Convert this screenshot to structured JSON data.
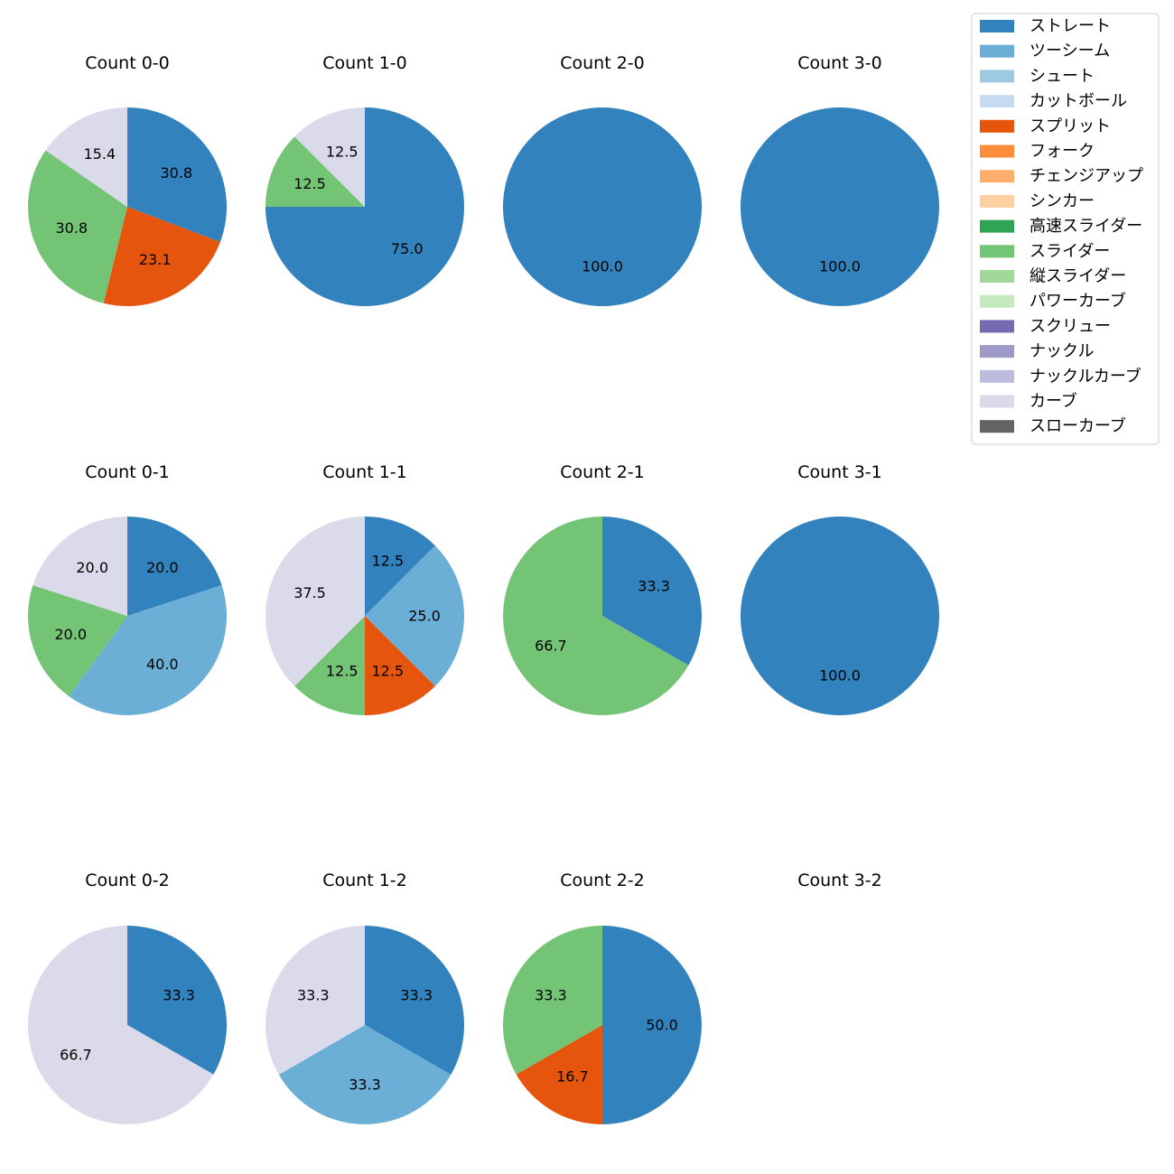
{
  "colors": {
    "ストレート": "#3182bd",
    "ツーシーム": "#6baed6",
    "シュート": "#9ecae1",
    "カットボール": "#c6dbef",
    "スプリット": "#e6550d",
    "フォーク": "#fd8d3c",
    "チェンジアップ": "#fdae6b",
    "シンカー": "#fdd0a2",
    "高速スライダー": "#31a354",
    "スライダー": "#74c476",
    "縦スライダー": "#a1d99b",
    "パワーカーブ": "#c7e9c0",
    "スクリュー": "#756bb1",
    "ナックル": "#9e9ac8",
    "ナックルカーブ": "#bcbddc",
    "カーブ": "#dadaeb",
    "スローカーブ": "#636363"
  },
  "chart_data": {
    "type": "pie",
    "legend": {
      "placement": "top-right",
      "entries": [
        "ストレート",
        "ツーシーム",
        "シュート",
        "カットボール",
        "スプリット",
        "フォーク",
        "チェンジアップ",
        "シンカー",
        "高速スライダー",
        "スライダー",
        "縦スライダー",
        "パワーカーブ",
        "スクリュー",
        "ナックル",
        "ナックルカーブ",
        "カーブ",
        "スローカーブ"
      ]
    },
    "charts": [
      {
        "title": "Count 0-0",
        "slices": [
          {
            "label": "ストレート",
            "value": 30.8,
            "text": "30.8"
          },
          {
            "label": "スプリット",
            "value": 23.1,
            "text": "23.1"
          },
          {
            "label": "スライダー",
            "value": 30.8,
            "text": "30.8"
          },
          {
            "label": "カーブ",
            "value": 15.4,
            "text": "15.4"
          }
        ]
      },
      {
        "title": "Count 1-0",
        "slices": [
          {
            "label": "ストレート",
            "value": 75.0,
            "text": "75.0"
          },
          {
            "label": "スライダー",
            "value": 12.5,
            "text": "12.5"
          },
          {
            "label": "カーブ",
            "value": 12.5,
            "text": "12.5"
          }
        ]
      },
      {
        "title": "Count 2-0",
        "slices": [
          {
            "label": "ストレート",
            "value": 100.0,
            "text": "100.0"
          }
        ]
      },
      {
        "title": "Count 3-0",
        "slices": [
          {
            "label": "ストレート",
            "value": 100.0,
            "text": "100.0"
          }
        ]
      },
      {
        "title": "Count 0-1",
        "slices": [
          {
            "label": "ストレート",
            "value": 20.0,
            "text": "20.0"
          },
          {
            "label": "ツーシーム",
            "value": 40.0,
            "text": "40.0"
          },
          {
            "label": "スライダー",
            "value": 20.0,
            "text": "20.0"
          },
          {
            "label": "カーブ",
            "value": 20.0,
            "text": "20.0"
          }
        ]
      },
      {
        "title": "Count 1-1",
        "slices": [
          {
            "label": "ストレート",
            "value": 12.5,
            "text": "12.5"
          },
          {
            "label": "ツーシーム",
            "value": 25.0,
            "text": "25.0"
          },
          {
            "label": "スプリット",
            "value": 12.5,
            "text": "12.5"
          },
          {
            "label": "スライダー",
            "value": 12.5,
            "text": "12.5"
          },
          {
            "label": "カーブ",
            "value": 37.5,
            "text": "37.5"
          }
        ]
      },
      {
        "title": "Count 2-1",
        "slices": [
          {
            "label": "ストレート",
            "value": 33.3,
            "text": "33.3"
          },
          {
            "label": "スライダー",
            "value": 66.7,
            "text": "66.7"
          }
        ]
      },
      {
        "title": "Count 3-1",
        "slices": [
          {
            "label": "ストレート",
            "value": 100.0,
            "text": "100.0"
          }
        ]
      },
      {
        "title": "Count 0-2",
        "slices": [
          {
            "label": "ストレート",
            "value": 33.3,
            "text": "33.3"
          },
          {
            "label": "カーブ",
            "value": 66.7,
            "text": "66.7"
          }
        ]
      },
      {
        "title": "Count 1-2",
        "slices": [
          {
            "label": "ストレート",
            "value": 33.3,
            "text": "33.3"
          },
          {
            "label": "ツーシーム",
            "value": 33.3,
            "text": "33.3"
          },
          {
            "label": "カーブ",
            "value": 33.3,
            "text": "33.3"
          }
        ]
      },
      {
        "title": "Count 2-2",
        "slices": [
          {
            "label": "ストレート",
            "value": 50.0,
            "text": "50.0"
          },
          {
            "label": "スプリット",
            "value": 16.7,
            "text": "16.7"
          },
          {
            "label": "スライダー",
            "value": 33.3,
            "text": "33.3"
          }
        ]
      },
      {
        "title": "Count 3-2",
        "slices": []
      }
    ]
  }
}
